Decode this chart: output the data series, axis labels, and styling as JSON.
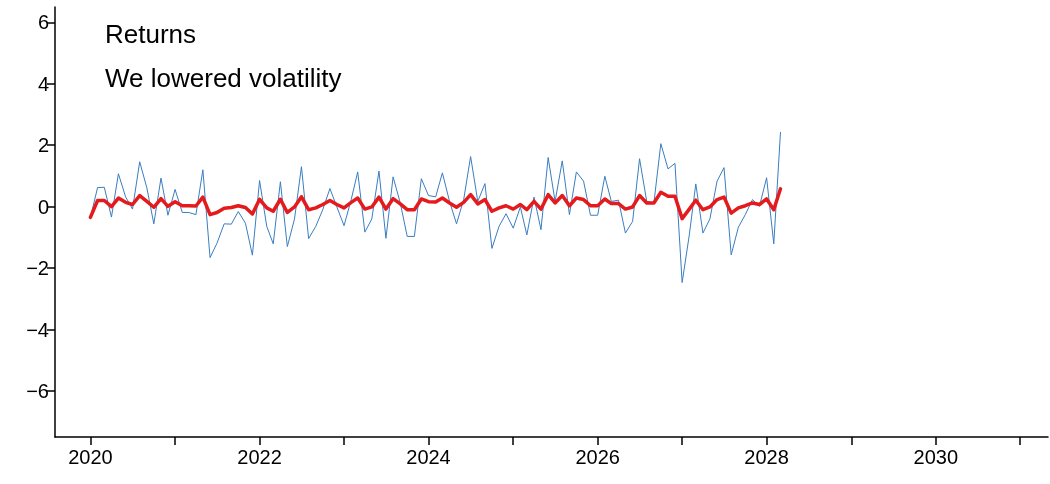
{
  "chart_data": {
    "type": "line",
    "title": "Returns",
    "subtitle": "We lowered volatility",
    "x": [
      "2020-01",
      "2020-02",
      "2020-03",
      "2020-04",
      "2020-05",
      "2020-06",
      "2020-07",
      "2020-08",
      "2020-09",
      "2020-10",
      "2020-11",
      "2020-12",
      "2021-01",
      "2021-02",
      "2021-03",
      "2021-04",
      "2021-05",
      "2021-06",
      "2021-07",
      "2021-08",
      "2021-09",
      "2021-10",
      "2021-11",
      "2021-12",
      "2022-01",
      "2022-02",
      "2022-03",
      "2022-04",
      "2022-05",
      "2022-06",
      "2022-07",
      "2022-08",
      "2022-09",
      "2022-10",
      "2022-11",
      "2022-12",
      "2023-01",
      "2023-02",
      "2023-03",
      "2023-04",
      "2023-05",
      "2023-06",
      "2023-07",
      "2023-08",
      "2023-09",
      "2023-10",
      "2023-11",
      "2023-12",
      "2024-01",
      "2024-02",
      "2024-03",
      "2024-04",
      "2024-05",
      "2024-06",
      "2024-07",
      "2024-08",
      "2024-09",
      "2024-10",
      "2024-11",
      "2024-12",
      "2025-01",
      "2025-02",
      "2025-03",
      "2025-04",
      "2025-05",
      "2025-06",
      "2025-07",
      "2025-08",
      "2025-09",
      "2025-10",
      "2025-11",
      "2025-12",
      "2026-01",
      "2026-02",
      "2026-03",
      "2026-04",
      "2026-05",
      "2026-06",
      "2026-07",
      "2026-08",
      "2026-09",
      "2026-10",
      "2026-11",
      "2026-12",
      "2027-01",
      "2027-02",
      "2027-03",
      "2027-04",
      "2027-05",
      "2027-06",
      "2027-07",
      "2027-08",
      "2027-09",
      "2027-10",
      "2027-11",
      "2027-12",
      "2028-01",
      "2028-02",
      "2028-03"
    ],
    "series": [
      {
        "color": "#3a7dc0",
        "values": [
          -0.35,
          0.62,
          0.63,
          -0.34,
          1.07,
          0.32,
          -0.08,
          1.46,
          0.61,
          -0.56,
          0.93,
          -0.28,
          0.56,
          -0.19,
          -0.19,
          -0.26,
          1.2,
          -1.66,
          -1.19,
          -0.56,
          -0.57,
          -0.16,
          -0.54,
          -1.58,
          0.85,
          -0.64,
          -1.21,
          0.81,
          -1.3,
          -0.4,
          1.3,
          -1.04,
          -0.64,
          -0.1,
          0.59,
          -0.01,
          -0.62,
          0.23,
          1.13,
          -0.83,
          -0.4,
          1.16,
          -1.03,
          0.97,
          0.12,
          -0.97,
          -0.97,
          0.91,
          0.36,
          0.32,
          1.1,
          0.17,
          -0.56,
          0.23,
          1.63,
          0.17,
          0.75,
          -1.36,
          -0.64,
          -0.23,
          -0.7,
          -0.01,
          -0.92,
          0.31,
          -0.75,
          1.6,
          0.17,
          1.49,
          -0.26,
          1.13,
          0.83,
          -0.28,
          -0.28,
          0.99,
          0.17,
          0.21,
          -0.86,
          -0.48,
          1.56,
          0.17,
          0.12,
          2.05,
          1.23,
          1.41,
          -2.47,
          -0.92,
          0.74,
          -0.86,
          -0.4,
          0.83,
          1.27,
          -1.57,
          -0.67,
          -0.26,
          0.23,
          0.01,
          0.94,
          -1.21,
          2.42
        ]
      },
      {
        "color": "#e41a1c",
        "values": [
          -0.35,
          0.2,
          0.2,
          0,
          0.28,
          0.14,
          0.07,
          0.36,
          0.17,
          -0.02,
          0.26,
          0.01,
          0.16,
          0.03,
          0.03,
          0.02,
          0.31,
          -0.26,
          -0.19,
          -0.05,
          -0.03,
          0.03,
          -0.03,
          -0.24,
          0.24,
          -0.04,
          -0.15,
          0.24,
          -0.19,
          -0.01,
          0.32,
          -0.1,
          -0.04,
          0.07,
          0.2,
          0.07,
          -0.04,
          0.14,
          0.28,
          -0.08,
          -0.01,
          0.31,
          -0.08,
          0.26,
          0.09,
          -0.1,
          -0.1,
          0.25,
          0.16,
          0.15,
          0.28,
          0.12,
          -0.02,
          0.14,
          0.39,
          0.09,
          0.23,
          -0.15,
          -0.04,
          0.03,
          -0.08,
          0.07,
          -0.1,
          0.17,
          -0.08,
          0.39,
          0.12,
          0.36,
          0.03,
          0.28,
          0.23,
          0.03,
          0.03,
          0.25,
          0.1,
          0.1,
          -0.08,
          -0.01,
          0.36,
          0.12,
          0.12,
          0.47,
          0.34,
          0.34,
          -0.39,
          -0.08,
          0.21,
          -0.1,
          -0.01,
          0.23,
          0.31,
          -0.21,
          -0.04,
          0.03,
          0.12,
          0.07,
          0.25,
          -0.1,
          0.58
        ]
      }
    ],
    "xlim": [
      "2019-08",
      "2031-05"
    ],
    "xticks": [
      {
        "value": "2020",
        "label": "2020"
      },
      {
        "value": "2021",
        "label": null
      },
      {
        "value": "2022",
        "label": "2022"
      },
      {
        "value": "2023",
        "label": null
      },
      {
        "value": "2024",
        "label": "2024"
      },
      {
        "value": "2025",
        "label": null
      },
      {
        "value": "2026",
        "label": "2026"
      },
      {
        "value": "2027",
        "label": null
      },
      {
        "value": "2028",
        "label": "2028"
      },
      {
        "value": "2029",
        "label": null
      },
      {
        "value": "2030",
        "label": "2030"
      },
      {
        "value": "2031",
        "label": null
      }
    ],
    "ylim": [
      -7.5,
      6.5
    ],
    "yticks": [
      {
        "value": -6,
        "label": "−6"
      },
      {
        "value": -4,
        "label": "−4"
      },
      {
        "value": -2,
        "label": "−2"
      },
      0,
      2,
      4,
      6
    ],
    "grid": false,
    "marker": "none",
    "line_style": "solid"
  }
}
